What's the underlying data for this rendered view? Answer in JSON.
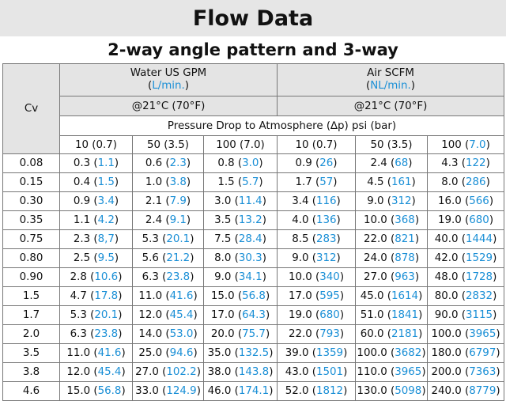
{
  "title": "Flow Data",
  "subtitle": "2-way angle pattern and 3-way",
  "header": {
    "cv_label": "Cv",
    "water": {
      "line1": "Water US GPM",
      "unit_open": "(",
      "unit": "L/min.",
      "unit_close": ")",
      "temp": "@21°C (70°F)"
    },
    "air": {
      "line1": "Air SCFM",
      "unit_open": "(",
      "unit": "NL/min.",
      "unit_close": ")",
      "temp": "@21°C (70°F)"
    },
    "pressure_drop": "Pressure Drop to Atmosphere (∆p) psi (bar)",
    "pressure_cols": [
      {
        "psi": "10",
        "bar": "0.7",
        "bar_blue": false
      },
      {
        "psi": "50",
        "bar": "3.5",
        "bar_blue": false
      },
      {
        "psi": "100",
        "bar": "7.0",
        "bar_blue": false
      },
      {
        "psi": "10",
        "bar": "0.7",
        "bar_blue": false
      },
      {
        "psi": "50",
        "bar": "3.5",
        "bar_blue": false
      },
      {
        "psi": "100",
        "bar": "7.0",
        "bar_blue": true
      }
    ]
  },
  "rows": [
    {
      "cv": "0.08",
      "cells": [
        [
          "0.3",
          "1.1"
        ],
        [
          "0.6",
          "2.3"
        ],
        [
          "0.8",
          "3.0"
        ],
        [
          "0.9",
          "26"
        ],
        [
          "2.4",
          "68"
        ],
        [
          "4.3",
          "122"
        ]
      ]
    },
    {
      "cv": "0.15",
      "cells": [
        [
          "0.4",
          "1.5"
        ],
        [
          "1.0",
          "3.8"
        ],
        [
          "1.5",
          "5.7"
        ],
        [
          "1.7",
          "57"
        ],
        [
          "4.5",
          "161"
        ],
        [
          "8.0",
          "286"
        ]
      ]
    },
    {
      "cv": "0.30",
      "cells": [
        [
          "0.9",
          "3.4"
        ],
        [
          "2.1",
          "7.9"
        ],
        [
          "3.0",
          "11.4"
        ],
        [
          "3.4",
          "116"
        ],
        [
          "9.0",
          "312"
        ],
        [
          "16.0",
          "566"
        ]
      ]
    },
    {
      "cv": "0.35",
      "cells": [
        [
          "1.1",
          "4.2"
        ],
        [
          "2.4",
          "9.1"
        ],
        [
          "3.5",
          "13.2"
        ],
        [
          "4.0",
          "136"
        ],
        [
          "10.0",
          "368"
        ],
        [
          "19.0",
          "680"
        ]
      ]
    },
    {
      "cv": "0.75",
      "cells": [
        [
          "2.3",
          "8,7"
        ],
        [
          "5.3",
          "20.1"
        ],
        [
          "7.5",
          "28.4"
        ],
        [
          "8.5",
          "283"
        ],
        [
          "22.0",
          "821"
        ],
        [
          "40.0",
          "1444"
        ]
      ]
    },
    {
      "cv": "0.80",
      "cells": [
        [
          "2.5",
          "9.5"
        ],
        [
          "5.6",
          "21.2"
        ],
        [
          "8.0",
          "30.3"
        ],
        [
          "9.0",
          "312"
        ],
        [
          "24.0",
          "878"
        ],
        [
          "42.0",
          "1529"
        ]
      ]
    },
    {
      "cv": "0.90",
      "cells": [
        [
          "2.8",
          "10.6"
        ],
        [
          "6.3",
          "23.8"
        ],
        [
          "9.0",
          "34.1"
        ],
        [
          "10.0",
          "340"
        ],
        [
          "27.0",
          "963"
        ],
        [
          "48.0",
          "1728"
        ]
      ]
    },
    {
      "cv": "1.5",
      "cells": [
        [
          "4.7",
          "17.8"
        ],
        [
          "11.0",
          "41.6"
        ],
        [
          "15.0",
          "56.8"
        ],
        [
          "17.0",
          "595"
        ],
        [
          "45.0",
          "1614"
        ],
        [
          "80.0",
          "2832"
        ]
      ]
    },
    {
      "cv": "1.7",
      "cells": [
        [
          "5.3",
          "20.1"
        ],
        [
          "12.0",
          "45.4"
        ],
        [
          "17.0",
          "64.3"
        ],
        [
          "19.0",
          "680"
        ],
        [
          "51.0",
          "1841"
        ],
        [
          "90.0",
          "3115"
        ]
      ]
    },
    {
      "cv": "2.0",
      "cells": [
        [
          "6.3",
          "23.8"
        ],
        [
          "14.0",
          "53.0"
        ],
        [
          "20.0",
          "75.7"
        ],
        [
          "22.0",
          "793"
        ],
        [
          "60.0",
          "2181"
        ],
        [
          "100.0",
          "3965"
        ]
      ]
    },
    {
      "cv": "3.5",
      "cells": [
        [
          "11.0",
          "41.6"
        ],
        [
          "25.0",
          "94.6"
        ],
        [
          "35.0",
          "132.5"
        ],
        [
          "39.0",
          "1359"
        ],
        [
          "100.0",
          "3682"
        ],
        [
          "180.0",
          "6797"
        ]
      ]
    },
    {
      "cv": "3.8",
      "cells": [
        [
          "12.0",
          "45.4"
        ],
        [
          "27.0",
          "102.2"
        ],
        [
          "38.0",
          "143.8"
        ],
        [
          "43.0",
          "1501"
        ],
        [
          "110.0",
          "3965"
        ],
        [
          "200.0",
          "7363"
        ]
      ]
    },
    {
      "cv": "4.6",
      "cells": [
        [
          "15.0",
          "56.8"
        ],
        [
          "33.0",
          "124.9"
        ],
        [
          "46.0",
          "174.1"
        ],
        [
          "52.0",
          "1812"
        ],
        [
          "130.0",
          "5098"
        ],
        [
          "240.0",
          "8779"
        ]
      ]
    }
  ],
  "colors": {
    "blue": "#1a8fd6",
    "header_bg": "#e4e4e4",
    "title_bg": "#e6e6e6"
  }
}
